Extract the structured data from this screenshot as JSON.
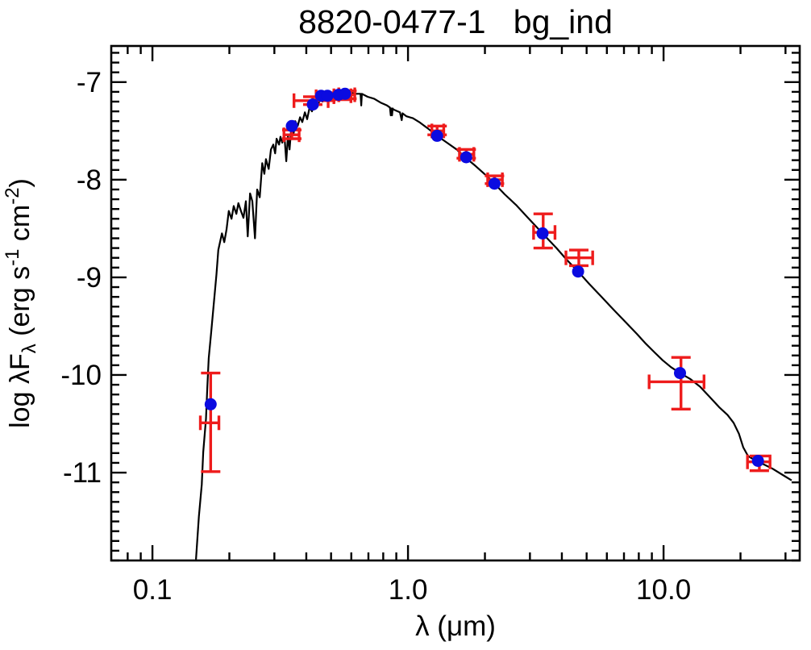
{
  "title": "8820-0477-1   bg_ind",
  "axes": {
    "x": {
      "scale": "log",
      "min": 0.069,
      "max": 34.1,
      "label": "λ (μm)",
      "major_ticks": [
        {
          "v": 0.1,
          "label": "0.1"
        },
        {
          "v": 1.0,
          "label": "1.0"
        },
        {
          "v": 10.0,
          "label": "10.0"
        }
      ],
      "minor_ticks": [
        0.08,
        0.09,
        0.2,
        0.3,
        0.4,
        0.5,
        0.6,
        0.7,
        0.8,
        0.9,
        2,
        3,
        4,
        5,
        6,
        7,
        8,
        9,
        20,
        30
      ]
    },
    "y": {
      "scale": "linear",
      "min": -11.9,
      "max": -6.63,
      "minor_step": 0.1,
      "ylabel_parts": [
        {
          "t": "log λF",
          "pos": "n"
        },
        {
          "t": "λ",
          "pos": "sub"
        },
        {
          "t": " (erg s",
          "pos": "n"
        },
        {
          "t": "-1",
          "pos": "sup"
        },
        {
          "t": " cm",
          "pos": "n"
        },
        {
          "t": "-2",
          "pos": "sup"
        },
        {
          "t": ")",
          "pos": "n"
        }
      ],
      "major_ticks": [
        {
          "v": -7,
          "label": "-7"
        },
        {
          "v": -8,
          "label": "-8"
        },
        {
          "v": -9,
          "label": "-9"
        },
        {
          "v": -10,
          "label": "-10"
        },
        {
          "v": -11,
          "label": "-11"
        }
      ]
    }
  },
  "style": {
    "frame_color": "#000000",
    "curve_color": "#000000",
    "point_color": "#0b0be0",
    "error_color": "#ee1c1c",
    "background": "#ffffff"
  },
  "chart_data": {
    "type": "line+scatter",
    "title": "8820-0477-1  bg_ind",
    "xlabel": "λ (μm)",
    "ylabel": "log λFλ (erg s^-1 cm^-2)",
    "x_range_um": [
      0.069,
      34.1
    ],
    "y_range_log": [
      -11.9,
      -6.63
    ],
    "legend": "none",
    "model_spectrum": [
      [
        0.148,
        -11.89
      ],
      [
        0.152,
        -11.45
      ],
      [
        0.156,
        -11.12
      ],
      [
        0.158,
        -10.79
      ],
      [
        0.162,
        -10.45
      ],
      [
        0.164,
        -10.12
      ],
      [
        0.166,
        -9.83
      ],
      [
        0.17,
        -9.55
      ],
      [
        0.174,
        -9.26
      ],
      [
        0.178,
        -8.97
      ],
      [
        0.181,
        -8.72
      ],
      [
        0.187,
        -8.55
      ],
      [
        0.191,
        -8.64
      ],
      [
        0.195,
        -8.51
      ],
      [
        0.199,
        -8.32
      ],
      [
        0.204,
        -8.4
      ],
      [
        0.208,
        -8.27
      ],
      [
        0.213,
        -8.35
      ],
      [
        0.217,
        -8.24
      ],
      [
        0.222,
        -8.32
      ],
      [
        0.227,
        -8.39
      ],
      [
        0.232,
        -8.22
      ],
      [
        0.236,
        -8.58
      ],
      [
        0.241,
        -8.14
      ],
      [
        0.246,
        -8.22
      ],
      [
        0.252,
        -8.6
      ],
      [
        0.257,
        -8.1
      ],
      [
        0.263,
        -8.18
      ],
      [
        0.269,
        -7.83
      ],
      [
        0.274,
        -7.94
      ],
      [
        0.278,
        -7.79
      ],
      [
        0.285,
        -7.89
      ],
      [
        0.291,
        -7.69
      ],
      [
        0.297,
        -7.64
      ],
      [
        0.302,
        -7.73
      ],
      [
        0.306,
        -7.58
      ],
      [
        0.313,
        -7.64
      ],
      [
        0.317,
        -7.56
      ],
      [
        0.322,
        -7.62
      ],
      [
        0.329,
        -7.57
      ],
      [
        0.334,
        -7.81
      ],
      [
        0.339,
        -7.55
      ],
      [
        0.344,
        -7.69
      ],
      [
        0.349,
        -7.48
      ],
      [
        0.357,
        -7.52
      ],
      [
        0.362,
        -7.4
      ],
      [
        0.37,
        -7.45
      ],
      [
        0.378,
        -7.36
      ],
      [
        0.386,
        -7.41
      ],
      [
        0.395,
        -7.31
      ],
      [
        0.403,
        -7.38
      ],
      [
        0.412,
        -7.26
      ],
      [
        0.421,
        -7.3
      ],
      [
        0.431,
        -7.21
      ],
      [
        0.443,
        -7.25
      ],
      [
        0.453,
        -7.17
      ],
      [
        0.463,
        -7.2
      ],
      [
        0.473,
        -7.13
      ],
      [
        0.487,
        -7.17
      ],
      [
        0.501,
        -7.12
      ],
      [
        0.52,
        -7.15
      ],
      [
        0.535,
        -7.11
      ],
      [
        0.559,
        -7.13
      ],
      [
        0.584,
        -7.1
      ],
      [
        0.619,
        -7.12
      ],
      [
        0.652,
        -7.12
      ],
      [
        0.656,
        -7.24
      ],
      [
        0.66,
        -7.12
      ],
      [
        0.695,
        -7.15
      ],
      [
        0.737,
        -7.17
      ],
      [
        0.781,
        -7.21
      ],
      [
        0.828,
        -7.24
      ],
      [
        0.85,
        -7.26
      ],
      [
        0.856,
        -7.34
      ],
      [
        0.861,
        -7.27
      ],
      [
        0.866,
        -7.34
      ],
      [
        0.871,
        -7.27
      ],
      [
        0.877,
        -7.28
      ],
      [
        0.93,
        -7.31
      ],
      [
        0.945,
        -7.39
      ],
      [
        0.952,
        -7.32
      ],
      [
        0.986,
        -7.35
      ],
      [
        1.045,
        -7.37
      ],
      [
        1.107,
        -7.41
      ],
      [
        1.19,
        -7.47
      ],
      [
        1.3,
        -7.55
      ],
      [
        1.42,
        -7.62
      ],
      [
        1.55,
        -7.69
      ],
      [
        1.69,
        -7.78
      ],
      [
        1.84,
        -7.86
      ],
      [
        2.01,
        -7.95
      ],
      [
        2.18,
        -8.04
      ],
      [
        2.39,
        -8.15
      ],
      [
        2.65,
        -8.26
      ],
      [
        2.97,
        -8.4
      ],
      [
        3.36,
        -8.55
      ],
      [
        3.81,
        -8.7
      ],
      [
        4.18,
        -8.82
      ],
      [
        4.63,
        -8.94
      ],
      [
        5.13,
        -9.07
      ],
      [
        5.72,
        -9.2
      ],
      [
        6.37,
        -9.33
      ],
      [
        7.11,
        -9.46
      ],
      [
        7.87,
        -9.58
      ],
      [
        8.52,
        -9.68
      ],
      [
        9.23,
        -9.77
      ],
      [
        9.93,
        -9.85
      ],
      [
        10.7,
        -9.92
      ],
      [
        11.6,
        -9.98
      ],
      [
        12.7,
        -10.04
      ],
      [
        13.9,
        -10.12
      ],
      [
        15.1,
        -10.22
      ],
      [
        16.5,
        -10.33
      ],
      [
        17.8,
        -10.41
      ],
      [
        18.8,
        -10.49
      ],
      [
        19.7,
        -10.6
      ],
      [
        20.5,
        -10.74
      ],
      [
        21.4,
        -10.83
      ],
      [
        22.7,
        -10.87
      ],
      [
        24.4,
        -10.91
      ],
      [
        26.7,
        -10.96
      ],
      [
        29.1,
        -11.02
      ],
      [
        31.7,
        -11.08
      ]
    ],
    "model_photometry_points": [
      {
        "lam": 0.169,
        "val": -10.3
      },
      {
        "lam": 0.351,
        "val": -7.45
      },
      {
        "lam": 0.424,
        "val": -7.23
      },
      {
        "lam": 0.457,
        "val": -7.14
      },
      {
        "lam": 0.484,
        "val": -7.14
      },
      {
        "lam": 0.535,
        "val": -7.13
      },
      {
        "lam": 0.567,
        "val": -7.12
      },
      {
        "lam": 1.3,
        "val": -7.55
      },
      {
        "lam": 1.69,
        "val": -7.77
      },
      {
        "lam": 2.18,
        "val": -8.04
      },
      {
        "lam": 3.36,
        "val": -8.55
      },
      {
        "lam": 4.63,
        "val": -8.94
      },
      {
        "lam": 11.6,
        "val": -9.98
      },
      {
        "lam": 23.4,
        "val": -10.88
      }
    ],
    "observed_photometry": [
      {
        "lam": 0.169,
        "lam_lo": 0.154,
        "lam_hi": 0.182,
        "val": -10.49,
        "val_lo": -10.99,
        "val_hi": -9.98
      },
      {
        "lam": 0.351,
        "lam_lo": 0.327,
        "lam_hi": 0.375,
        "val": -7.54,
        "val_lo": -7.58,
        "val_hi": -7.49
      },
      {
        "lam": 0.424,
        "lam_lo": 0.358,
        "lam_hi": 0.487,
        "val": -7.19,
        "val_lo": -7.23,
        "val_hi": -7.15
      },
      {
        "lam": 0.473,
        "lam_lo": 0.437,
        "lam_hi": 0.513,
        "val": -7.15,
        "val_lo": -7.19,
        "val_hi": -7.11
      },
      {
        "lam": 0.555,
        "lam_lo": 0.513,
        "lam_hi": 0.598,
        "val": -7.14,
        "val_lo": -7.18,
        "val_hi": -7.1
      },
      {
        "lam": 0.577,
        "lam_lo": 0.536,
        "lam_hi": 0.619,
        "val": -7.13,
        "val_lo": -7.17,
        "val_hi": -7.09
      },
      {
        "lam": 1.3,
        "lam_lo": 1.24,
        "lam_hi": 1.38,
        "val": -7.5,
        "val_lo": -7.54,
        "val_hi": -7.45
      },
      {
        "lam": 1.69,
        "lam_lo": 1.59,
        "lam_hi": 1.81,
        "val": -7.74,
        "val_lo": -7.78,
        "val_hi": -7.69
      },
      {
        "lam": 2.18,
        "lam_lo": 2.05,
        "lam_hi": 2.34,
        "val": -8.0,
        "val_lo": -8.04,
        "val_hi": -7.96
      },
      {
        "lam": 3.38,
        "lam_lo": 3.1,
        "lam_hi": 3.76,
        "val": -8.54,
        "val_lo": -8.7,
        "val_hi": -8.35
      },
      {
        "lam": 4.66,
        "lam_lo": 4.15,
        "lam_hi": 5.28,
        "val": -8.8,
        "val_lo": -8.88,
        "val_hi": -8.72
      },
      {
        "lam": 11.7,
        "lam_lo": 8.78,
        "lam_hi": 14.4,
        "val": -10.07,
        "val_lo": -10.35,
        "val_hi": -9.82
      },
      {
        "lam": 23.7,
        "lam_lo": 21.3,
        "lam_hi": 26.1,
        "val": -10.89,
        "val_lo": -10.98,
        "val_hi": -10.83
      }
    ]
  }
}
